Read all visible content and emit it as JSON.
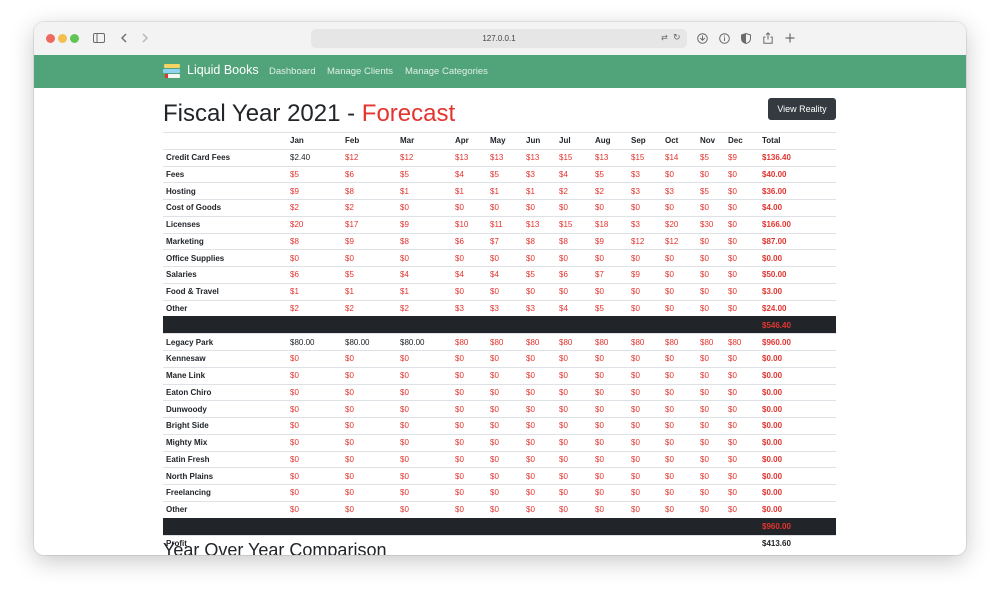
{
  "browser": {
    "url": "127.0.0.1",
    "traffic_light_colors": [
      "#ec6a5e",
      "#f4bf4f",
      "#61c554"
    ]
  },
  "nav": {
    "brand": "Liquid Books",
    "brand_color": "#51a47a",
    "links": [
      "Dashboard",
      "Manage Clients",
      "Manage Categories"
    ]
  },
  "page": {
    "title_prefix": "Fiscal Year 2021 - ",
    "title_accent": "Forecast",
    "accent_color": "#e3342f",
    "reality_button": "View Reality",
    "section_title": "Year Over Year Comparison"
  },
  "table": {
    "months": [
      "Jan",
      "Feb",
      "Mar",
      "Apr",
      "May",
      "Jun",
      "Jul",
      "Aug",
      "Sep",
      "Oct",
      "Nov",
      "Dec"
    ],
    "total_header": "Total",
    "expenses": [
      {
        "name": "Credit Card Fees",
        "values": [
          "$2.40",
          "$12",
          "$12",
          "$13",
          "$13",
          "$13",
          "$15",
          "$13",
          "$15",
          "$14",
          "$5",
          "$9"
        ],
        "total": "$136.40"
      },
      {
        "name": "Fees",
        "values": [
          "$5",
          "$6",
          "$5",
          "$4",
          "$5",
          "$3",
          "$4",
          "$5",
          "$3",
          "$0",
          "$0",
          "$0"
        ],
        "total": "$40.00"
      },
      {
        "name": "Hosting",
        "values": [
          "$9",
          "$8",
          "$1",
          "$1",
          "$1",
          "$1",
          "$2",
          "$2",
          "$3",
          "$3",
          "$5",
          "$0"
        ],
        "total": "$36.00"
      },
      {
        "name": "Cost of Goods",
        "values": [
          "$2",
          "$2",
          "$0",
          "$0",
          "$0",
          "$0",
          "$0",
          "$0",
          "$0",
          "$0",
          "$0",
          "$0"
        ],
        "total": "$4.00"
      },
      {
        "name": "Licenses",
        "values": [
          "$20",
          "$17",
          "$9",
          "$10",
          "$11",
          "$13",
          "$15",
          "$18",
          "$3",
          "$20",
          "$30",
          "$0"
        ],
        "total": "$166.00"
      },
      {
        "name": "Marketing",
        "values": [
          "$8",
          "$9",
          "$8",
          "$6",
          "$7",
          "$8",
          "$8",
          "$9",
          "$12",
          "$12",
          "$0",
          "$0"
        ],
        "total": "$87.00"
      },
      {
        "name": "Office Supplies",
        "values": [
          "$0",
          "$0",
          "$0",
          "$0",
          "$0",
          "$0",
          "$0",
          "$0",
          "$0",
          "$0",
          "$0",
          "$0"
        ],
        "total": "$0.00"
      },
      {
        "name": "Salaries",
        "values": [
          "$6",
          "$5",
          "$4",
          "$4",
          "$4",
          "$5",
          "$6",
          "$7",
          "$9",
          "$0",
          "$0",
          "$0"
        ],
        "total": "$50.00"
      },
      {
        "name": "Food & Travel",
        "values": [
          "$1",
          "$1",
          "$1",
          "$0",
          "$0",
          "$0",
          "$0",
          "$0",
          "$0",
          "$0",
          "$0",
          "$0"
        ],
        "total": "$3.00"
      },
      {
        "name": "Other",
        "values": [
          "$2",
          "$2",
          "$2",
          "$3",
          "$3",
          "$3",
          "$4",
          "$5",
          "$0",
          "$0",
          "$0",
          "$0"
        ],
        "total": "$24.00"
      }
    ],
    "expenses_total": "$546.40",
    "income": [
      {
        "name": "Legacy Park",
        "values": [
          "$80.00",
          "$80.00",
          "$80.00",
          "$80",
          "$80",
          "$80",
          "$80",
          "$80",
          "$80",
          "$80",
          "$80",
          "$80"
        ],
        "total": "$960.00"
      },
      {
        "name": "Kennesaw",
        "values": [
          "$0",
          "$0",
          "$0",
          "$0",
          "$0",
          "$0",
          "$0",
          "$0",
          "$0",
          "$0",
          "$0",
          "$0"
        ],
        "total": "$0.00"
      },
      {
        "name": "Mane Link",
        "values": [
          "$0",
          "$0",
          "$0",
          "$0",
          "$0",
          "$0",
          "$0",
          "$0",
          "$0",
          "$0",
          "$0",
          "$0"
        ],
        "total": "$0.00"
      },
      {
        "name": "Eaton Chiro",
        "values": [
          "$0",
          "$0",
          "$0",
          "$0",
          "$0",
          "$0",
          "$0",
          "$0",
          "$0",
          "$0",
          "$0",
          "$0"
        ],
        "total": "$0.00"
      },
      {
        "name": "Dunwoody",
        "values": [
          "$0",
          "$0",
          "$0",
          "$0",
          "$0",
          "$0",
          "$0",
          "$0",
          "$0",
          "$0",
          "$0",
          "$0"
        ],
        "total": "$0.00"
      },
      {
        "name": "Bright Side",
        "values": [
          "$0",
          "$0",
          "$0",
          "$0",
          "$0",
          "$0",
          "$0",
          "$0",
          "$0",
          "$0",
          "$0",
          "$0"
        ],
        "total": "$0.00"
      },
      {
        "name": "Mighty Mix",
        "values": [
          "$0",
          "$0",
          "$0",
          "$0",
          "$0",
          "$0",
          "$0",
          "$0",
          "$0",
          "$0",
          "$0",
          "$0"
        ],
        "total": "$0.00"
      },
      {
        "name": "Eatin Fresh",
        "values": [
          "$0",
          "$0",
          "$0",
          "$0",
          "$0",
          "$0",
          "$0",
          "$0",
          "$0",
          "$0",
          "$0",
          "$0"
        ],
        "total": "$0.00"
      },
      {
        "name": "North Plains",
        "values": [
          "$0",
          "$0",
          "$0",
          "$0",
          "$0",
          "$0",
          "$0",
          "$0",
          "$0",
          "$0",
          "$0",
          "$0"
        ],
        "total": "$0.00"
      },
      {
        "name": "Freelancing",
        "values": [
          "$0",
          "$0",
          "$0",
          "$0",
          "$0",
          "$0",
          "$0",
          "$0",
          "$0",
          "$0",
          "$0",
          "$0"
        ],
        "total": "$0.00"
      },
      {
        "name": "Other",
        "values": [
          "$0",
          "$0",
          "$0",
          "$0",
          "$0",
          "$0",
          "$0",
          "$0",
          "$0",
          "$0",
          "$0",
          "$0"
        ],
        "total": "$0.00"
      }
    ],
    "income_total": "$960.00",
    "profit_label": "Profit",
    "profit_total": "$413.60"
  }
}
